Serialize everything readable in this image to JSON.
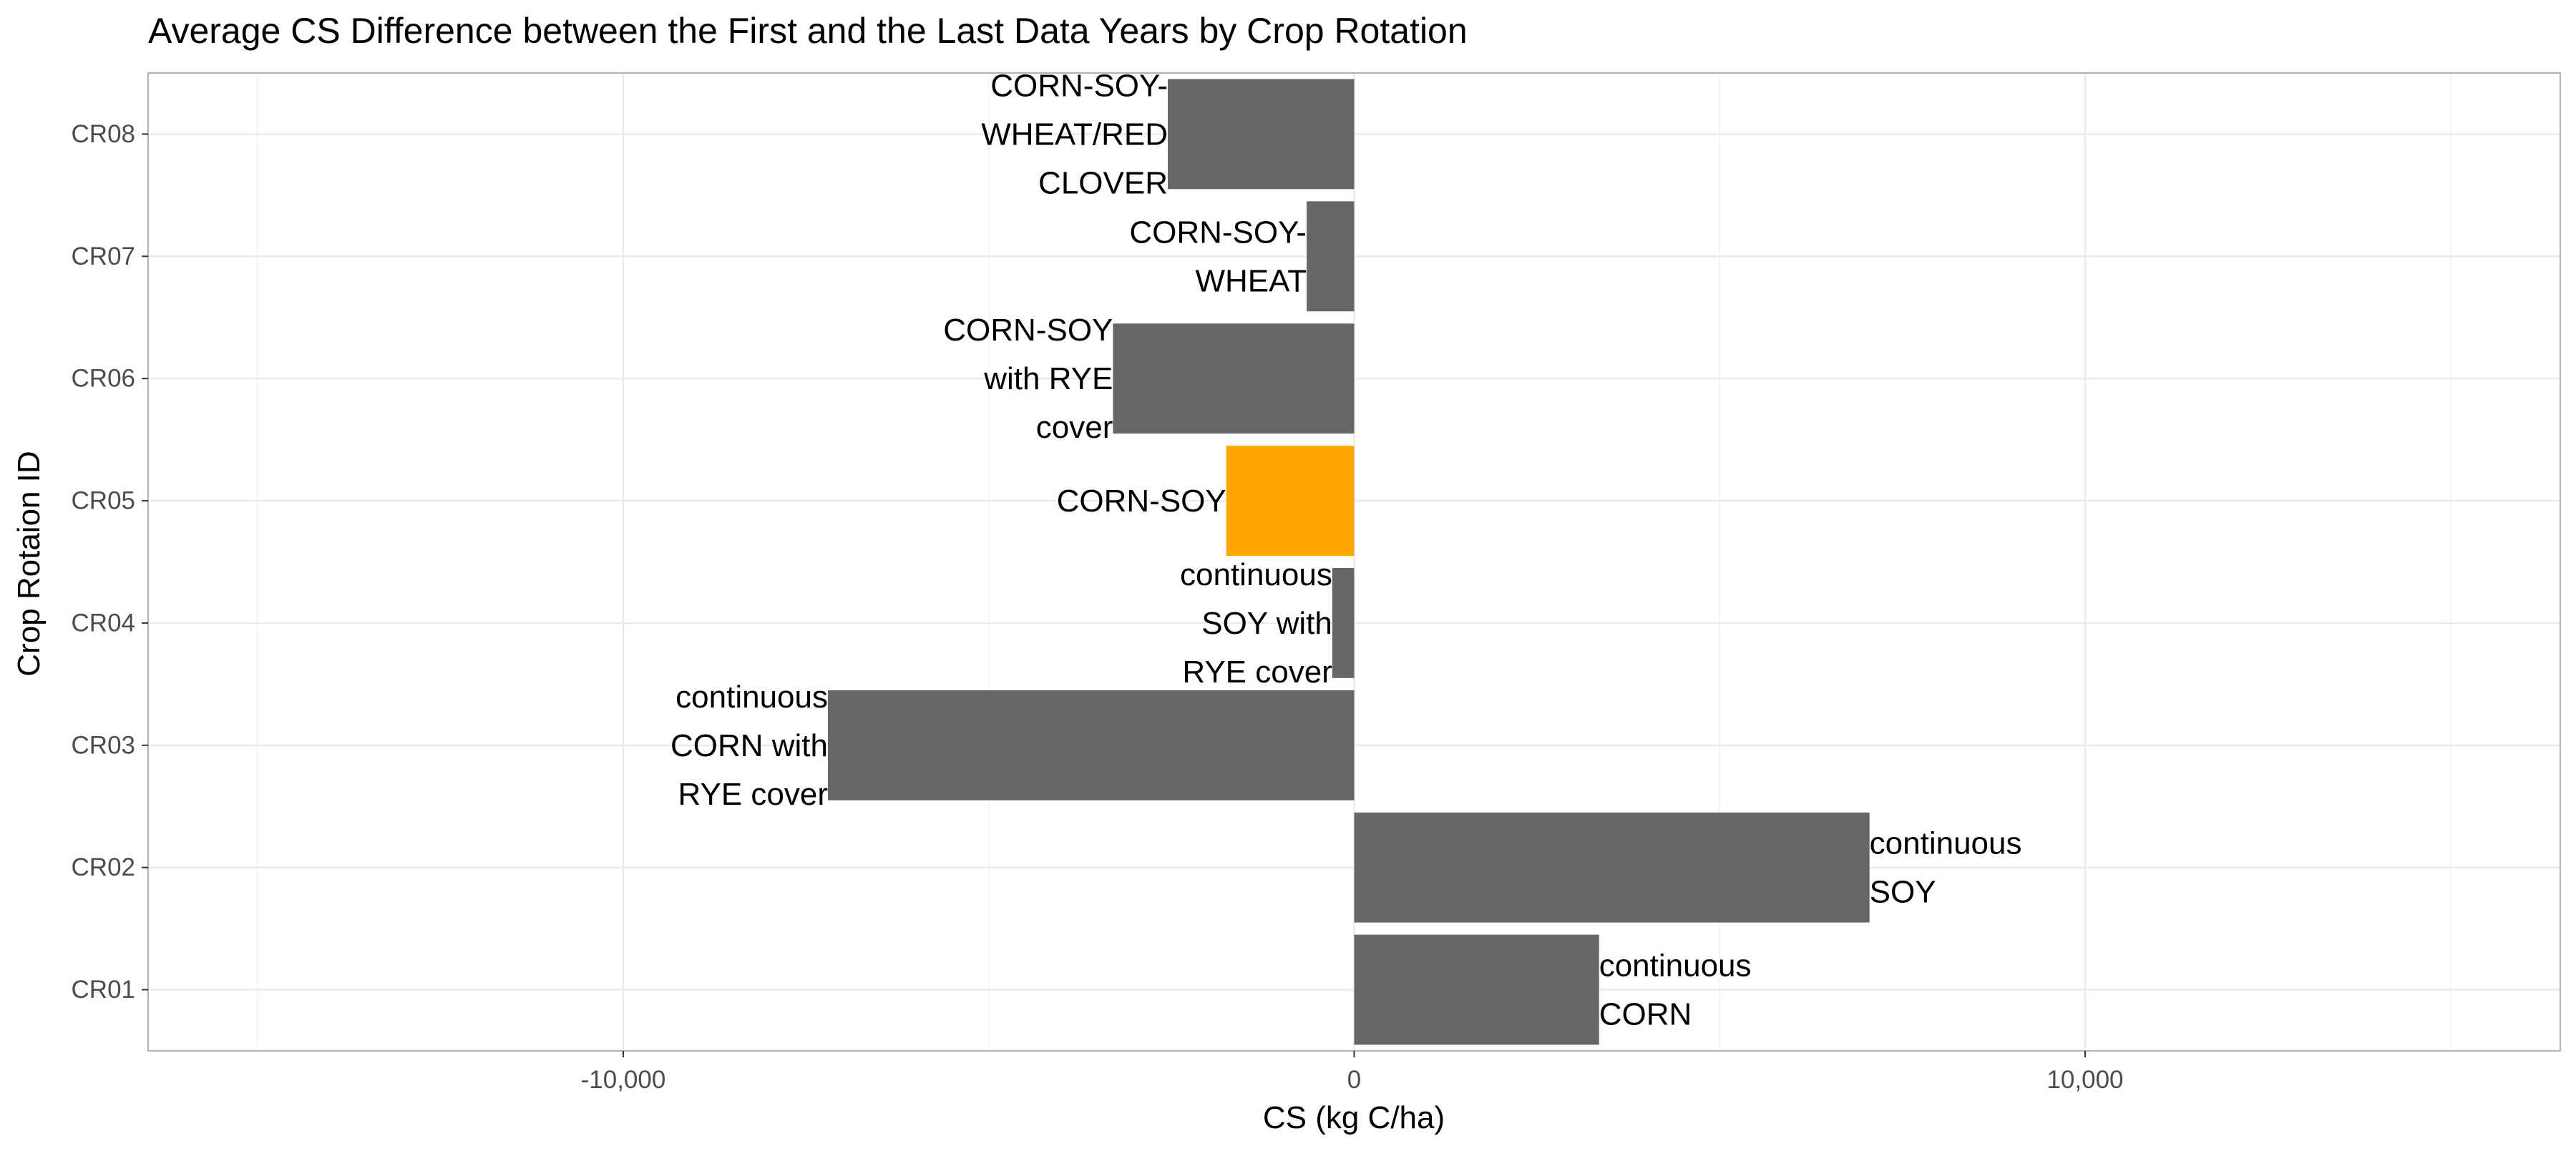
{
  "chart_data": {
    "type": "bar",
    "orientation": "horizontal",
    "title": "Average CS Difference between the First and the Last Data Years by Crop Rotation",
    "xlabel": "CS (kg C/ha)",
    "ylabel": "Crop Rotaion ID",
    "xlim": [
      -16500,
      16500
    ],
    "x_ticks": [
      -10000,
      0,
      10000
    ],
    "x_tick_labels": [
      "-10,000",
      "0",
      "10,000"
    ],
    "x_minor_ticks": [
      -15000,
      -5000,
      5000,
      15000
    ],
    "grid": true,
    "legend": "none",
    "categories": [
      "CR01",
      "CR02",
      "CR03",
      "CR04",
      "CR05",
      "CR06",
      "CR07",
      "CR08"
    ],
    "values": [
      3350,
      7050,
      -7200,
      -300,
      -1750,
      -3300,
      -650,
      -2550
    ],
    "bar_labels": [
      [
        "continuous",
        "CORN"
      ],
      [
        "continuous",
        "SOY"
      ],
      [
        "continuous",
        "CORN with",
        "RYE cover"
      ],
      [
        "continuous",
        "SOY with",
        "RYE cover"
      ],
      [
        "CORN-SOY"
      ],
      [
        "CORN-SOY",
        "with RYE",
        "cover"
      ],
      [
        "CORN-SOY-",
        "WHEAT"
      ],
      [
        "CORN-SOY-",
        "WHEAT/RED",
        "CLOVER"
      ]
    ],
    "highlight_category": "CR05",
    "colors": {
      "bar": "#666666",
      "highlight": "#ffa500",
      "grid_major": "#ebebeb",
      "grid_minor": "#f5f5f5",
      "panel_border": "#b3b3b3"
    }
  }
}
